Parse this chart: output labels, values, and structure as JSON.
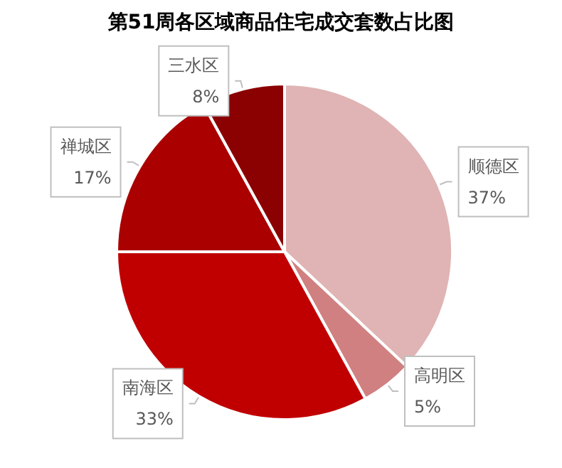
{
  "chart_data": {
    "type": "pie",
    "title": "第51周各区域商品住宅成交套数占比图",
    "categories": [
      "顺德区",
      "高明区",
      "南海区",
      "禅城区",
      "三水区"
    ],
    "values": [
      37,
      5,
      33,
      17,
      8
    ],
    "value_labels": [
      "37%",
      "5%",
      "33%",
      "17%",
      "8%"
    ],
    "colors": [
      "#e0b4b4",
      "#d08080",
      "#c00000",
      "#aa0000",
      "#8b0000"
    ],
    "legend": false
  }
}
